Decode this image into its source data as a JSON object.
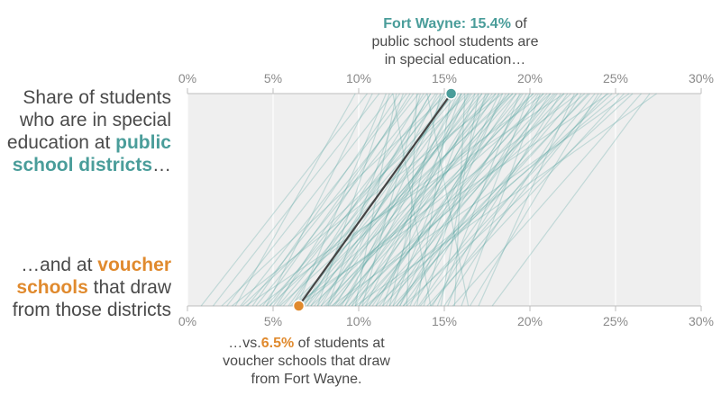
{
  "labels": {
    "top_line1": "Share of students",
    "top_line2": "who are in special",
    "top_line3_pre": "education at ",
    "top_line3_hl": "public",
    "top_line4_hl": "school districts",
    "top_line4_post": "…",
    "bottom_line1_pre": "…and at ",
    "bottom_line1_hl": "voucher",
    "bottom_line2_hl": "schools",
    "bottom_line2_post": " that draw",
    "bottom_line3": "from those districts"
  },
  "annotations": {
    "top_hl": "Fort Wayne: 15.4%",
    "top_rest1": " of",
    "top_line2": "public school students are",
    "top_line3": "in special education…",
    "bottom_pre": "…vs.",
    "bottom_hl": "6.5%",
    "bottom_rest1": " of students at",
    "bottom_line2": "voucher schools that draw",
    "bottom_line3": "from Fort Wayne."
  },
  "colors": {
    "teal": "#4a9d9a",
    "orange": "#e08a2e",
    "highlight_line": "#444444",
    "background": "#efefef",
    "grid": "#ffffff"
  },
  "chart_data": {
    "type": "slope",
    "axis": {
      "min": 0,
      "max": 30,
      "ticks": [
        0,
        5,
        10,
        15,
        20,
        25,
        30
      ],
      "tick_labels": [
        "0%",
        "5%",
        "10%",
        "15%",
        "20%",
        "25%",
        "30%"
      ]
    },
    "top_axis_label": "Public school districts",
    "bottom_axis_label": "Voucher schools",
    "highlight": {
      "name": "Fort Wayne",
      "public": 15.4,
      "voucher": 6.5
    },
    "pairs": [
      [
        10.5,
        0.8
      ],
      [
        11.2,
        1.5
      ],
      [
        12.0,
        2.3
      ],
      [
        12.8,
        3.1
      ],
      [
        13.5,
        3.5
      ],
      [
        14.0,
        4.0
      ],
      [
        13.2,
        4.4
      ],
      [
        14.5,
        4.8
      ],
      [
        15.0,
        5.0
      ],
      [
        15.8,
        5.3
      ],
      [
        16.2,
        5.6
      ],
      [
        14.8,
        5.9
      ],
      [
        13.8,
        6.1
      ],
      [
        16.8,
        6.3
      ],
      [
        17.5,
        6.6
      ],
      [
        15.5,
        6.8
      ],
      [
        14.2,
        7.0
      ],
      [
        16.0,
        7.2
      ],
      [
        18.2,
        7.4
      ],
      [
        17.0,
        7.6
      ],
      [
        15.2,
        7.8
      ],
      [
        19.0,
        8.0
      ],
      [
        16.5,
        8.1
      ],
      [
        14.6,
        8.3
      ],
      [
        17.8,
        8.5
      ],
      [
        20.2,
        8.7
      ],
      [
        18.8,
        8.9
      ],
      [
        16.0,
        9.0
      ],
      [
        15.0,
        9.2
      ],
      [
        19.5,
        9.4
      ],
      [
        21.0,
        9.6
      ],
      [
        17.2,
        9.8
      ],
      [
        18.0,
        10.0
      ],
      [
        20.8,
        10.2
      ],
      [
        16.4,
        10.4
      ],
      [
        22.0,
        10.6
      ],
      [
        19.2,
        10.8
      ],
      [
        17.6,
        11.0
      ],
      [
        21.5,
        11.2
      ],
      [
        23.5,
        11.4
      ],
      [
        18.6,
        11.6
      ],
      [
        20.0,
        11.8
      ],
      [
        16.8,
        12.0
      ],
      [
        22.8,
        12.2
      ],
      [
        19.8,
        12.4
      ],
      [
        21.2,
        12.6
      ],
      [
        24.5,
        12.8
      ],
      [
        18.4,
        13.0
      ],
      [
        20.5,
        13.2
      ],
      [
        22.2,
        13.5
      ],
      [
        17.4,
        13.8
      ],
      [
        25.5,
        14.0
      ],
      [
        21.8,
        14.3
      ],
      [
        19.4,
        14.6
      ],
      [
        23.0,
        15.0
      ],
      [
        26.5,
        15.5
      ],
      [
        20.6,
        16.0
      ],
      [
        24.0,
        16.5
      ],
      [
        22.6,
        17.0
      ],
      [
        27.0,
        17.8
      ],
      [
        18.2,
        12.4
      ],
      [
        15.8,
        9.6
      ],
      [
        14.2,
        6.8
      ],
      [
        13.0,
        5.2
      ],
      [
        12.4,
        3.8
      ],
      [
        17.2,
        7.0
      ],
      [
        16.6,
        8.6
      ],
      [
        19.6,
        10.6
      ],
      [
        21.6,
        12.2
      ],
      [
        23.8,
        13.6
      ],
      [
        15.6,
        4.6
      ],
      [
        18.8,
        6.0
      ],
      [
        20.4,
        7.8
      ],
      [
        22.4,
        9.4
      ],
      [
        24.8,
        11.0
      ],
      [
        16.4,
        3.2
      ],
      [
        19.0,
        5.4
      ],
      [
        21.2,
        7.2
      ],
      [
        23.2,
        8.8
      ],
      [
        25.2,
        10.4
      ],
      [
        14.8,
        11.8
      ],
      [
        13.6,
        10.2
      ],
      [
        12.6,
        8.2
      ],
      [
        11.6,
        6.4
      ],
      [
        13.4,
        12.8
      ],
      [
        15.4,
        13.4
      ],
      [
        17.0,
        14.8
      ],
      [
        12.2,
        9.8
      ],
      [
        16.2,
        15.6
      ],
      [
        20.0,
        15.2
      ],
      [
        9.8,
        2.8
      ],
      [
        10.8,
        4.6
      ],
      [
        11.8,
        7.6
      ],
      [
        24.2,
        14.2
      ],
      [
        26.0,
        12.6
      ],
      [
        22.8,
        6.6
      ],
      [
        20.8,
        4.2
      ],
      [
        18.4,
        2.6
      ],
      [
        25.8,
        8.4
      ],
      [
        21.4,
        10.0
      ],
      [
        19.2,
        8.2
      ],
      [
        17.6,
        9.2
      ],
      [
        16.0,
        11.4
      ],
      [
        23.4,
        12.0
      ],
      [
        12.0,
        14.2
      ],
      [
        14.0,
        16.4
      ],
      [
        27.4,
        9.8
      ],
      [
        24.6,
        6.2
      ],
      [
        22.0,
        3.4
      ],
      [
        15.2,
        2.0
      ],
      [
        18.0,
        4.8
      ],
      [
        20.2,
        6.4
      ]
    ]
  }
}
